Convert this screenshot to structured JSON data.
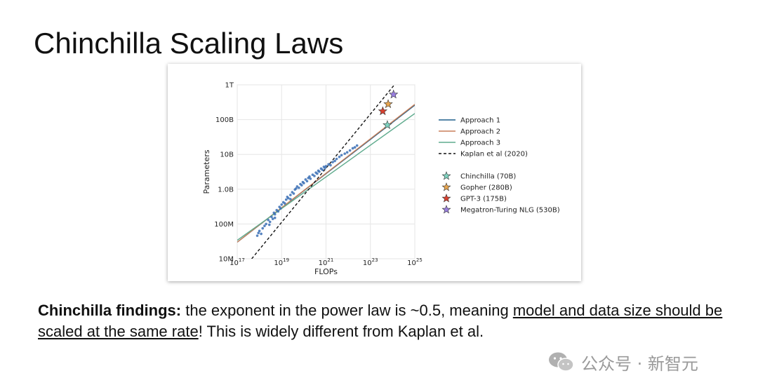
{
  "slide": {
    "title": "Chinchilla Scaling Laws",
    "findings_bold": "Chinchilla findings:",
    "findings_text": " the exponent in the power law is ~0.5, meaning ",
    "findings_underlined": "model and data size should be scaled at the same rate",
    "findings_end": "! This is widely different from Kaplan et al."
  },
  "watermark": {
    "text": "公众号 · 新智元",
    "icon": "wechat-icon"
  },
  "chart_data": {
    "type": "scatter",
    "xlabel": "FLOPs",
    "ylabel": "Parameters",
    "x_scale": "log",
    "y_scale": "log",
    "xlim": [
      1e+17,
      1e+25
    ],
    "ylim": [
      10000000.0,
      1000000000000.0
    ],
    "x_ticks": [
      {
        "value": 1e+17,
        "base": "10",
        "exp": "17"
      },
      {
        "value": 1e+19,
        "base": "10",
        "exp": "19"
      },
      {
        "value": 1e+21,
        "base": "10",
        "exp": "21"
      },
      {
        "value": 1e+23,
        "base": "10",
        "exp": "23"
      },
      {
        "value": 1e+25,
        "base": "10",
        "exp": "25"
      }
    ],
    "y_ticks": [
      {
        "value": 10000000.0,
        "label": "10M"
      },
      {
        "value": 100000000.0,
        "label": "100M"
      },
      {
        "value": 1000000000.0,
        "label": "1.0B"
      },
      {
        "value": 10000000000.0,
        "label": "10B"
      },
      {
        "value": 100000000000.0,
        "label": "100B"
      },
      {
        "value": 1000000000000.0,
        "label": "1T"
      }
    ],
    "grid": true,
    "legend_position": "right",
    "series": [
      {
        "name": "Approach 1",
        "kind": "line",
        "color": "#1f5f8b",
        "dash": "",
        "x": [
          1e+17,
          1e+25
        ],
        "y": [
          30000000.0,
          260000000000.0
        ]
      },
      {
        "name": "Approach 2",
        "kind": "line",
        "color": "#c87f5a",
        "dash": "",
        "x": [
          1e+17,
          1e+25
        ],
        "y": [
          30000000.0,
          275000000000.0
        ]
      },
      {
        "name": "Approach 3",
        "kind": "line",
        "color": "#5fab8e",
        "dash": "",
        "x": [
          1e+17,
          1e+25
        ],
        "y": [
          34000000.0,
          150000000000.0
        ]
      },
      {
        "name": "Kaplan et al (2020)",
        "kind": "line",
        "color": "#111111",
        "dash": "4,3",
        "x": [
          4.5e+17,
          1.2e+24
        ],
        "y": [
          10000000.0,
          1000000000000.0
        ]
      }
    ],
    "models": [
      {
        "name": "Chinchilla (70B)",
        "flops": 5.8e+23,
        "params": 70000000000.0,
        "color": "#7fd3c0"
      },
      {
        "name": "Gopher (280B)",
        "flops": 6.3e+23,
        "params": 280000000000.0,
        "color": "#e8a54f"
      },
      {
        "name": "GPT-3 (175B)",
        "flops": 3.6e+23,
        "params": 175000000000.0,
        "color": "#d9402f"
      },
      {
        "name": "Megatron-Turing NLG (530B)",
        "flops": 1.1e+24,
        "params": 530000000000.0,
        "color": "#9a7fe0"
      }
    ],
    "training_runs": {
      "color": "#3a6fb5",
      "points": [
        [
          8e+17,
          46000000.0
        ],
        [
          9e+17,
          55000000.0
        ],
        [
          1e+18,
          63000000.0
        ],
        [
          1.2e+18,
          52000000.0
        ],
        [
          1.4e+18,
          75000000.0
        ],
        [
          1.7e+18,
          88000000.0
        ],
        [
          2e+18,
          100000000.0
        ],
        [
          2.5e+18,
          130000000.0
        ],
        [
          2.8e+18,
          95000000.0
        ],
        [
          3e+18,
          115000000.0
        ],
        [
          3.5e+18,
          160000000.0
        ],
        [
          4e+18,
          140000000.0
        ],
        [
          4.5e+18,
          210000000.0
        ],
        [
          5e+18,
          190000000.0
        ],
        [
          6e+18,
          250000000.0
        ],
        [
          7e+18,
          230000000.0
        ],
        [
          8e+18,
          310000000.0
        ],
        [
          9e+18,
          280000000.0
        ],
        [
          1e+19,
          360000000.0
        ],
        [
          1.2e+19,
          420000000.0
        ],
        [
          1.4e+19,
          390000000.0
        ],
        [
          1.6e+19,
          500000000.0
        ],
        [
          1.8e+19,
          600000000.0
        ],
        [
          2e+19,
          550000000.0
        ],
        [
          2.5e+19,
          680000000.0
        ],
        [
          3e+19,
          820000000.0
        ],
        [
          3.5e+19,
          750000000.0
        ],
        [
          4e+19,
          980000000.0
        ],
        [
          4.5e+19,
          1050000000.0
        ],
        [
          5e+19,
          1200000000.0
        ],
        [
          6e+19,
          1100000000.0
        ],
        [
          7e+19,
          1400000000.0
        ],
        [
          8e+19,
          1300000000.0
        ],
        [
          9e+19,
          1600000000.0
        ],
        [
          1e+20,
          1500000000.0
        ],
        [
          1.2e+20,
          1900000000.0
        ],
        [
          1.4e+20,
          1700000000.0
        ],
        [
          1.6e+20,
          2100000000.0
        ],
        [
          1.8e+20,
          2300000000.0
        ],
        [
          2e+20,
          2000000000.0
        ],
        [
          2.5e+20,
          2600000000.0
        ],
        [
          3e+20,
          2400000000.0
        ],
        [
          3.5e+20,
          3000000000.0
        ],
        [
          4e+20,
          2800000000.0
        ],
        [
          4.5e+20,
          3400000000.0
        ],
        [
          5e+20,
          3200000000.0
        ],
        [
          6e+20,
          3900000000.0
        ],
        [
          7e+20,
          3600000000.0
        ],
        [
          8e+20,
          4400000000.0
        ],
        [
          9e+20,
          4100000000.0
        ],
        [
          1e+21,
          4600000000.0
        ],
        [
          1.3e+21,
          5200000000.0
        ],
        [
          1.6e+21,
          4900000000.0
        ],
        [
          2e+21,
          6000000000.0
        ],
        [
          2.5e+21,
          6500000000.0
        ],
        [
          3e+21,
          7400000000.0
        ],
        [
          4e+21,
          8500000000.0
        ],
        [
          5e+21,
          9500000000.0
        ],
        [
          7e+21,
          10500000000.0
        ],
        [
          9e+21,
          11500000000.0
        ],
        [
          1.2e+22,
          13000000000.0
        ],
        [
          1.6e+22,
          15000000000.0
        ],
        [
          2e+22,
          16000000000.0
        ],
        [
          2.5e+22,
          18000000000.0
        ],
        [
          5e+18,
          150000000.0
        ],
        [
          2.5e+19,
          520000000.0
        ]
      ]
    }
  }
}
